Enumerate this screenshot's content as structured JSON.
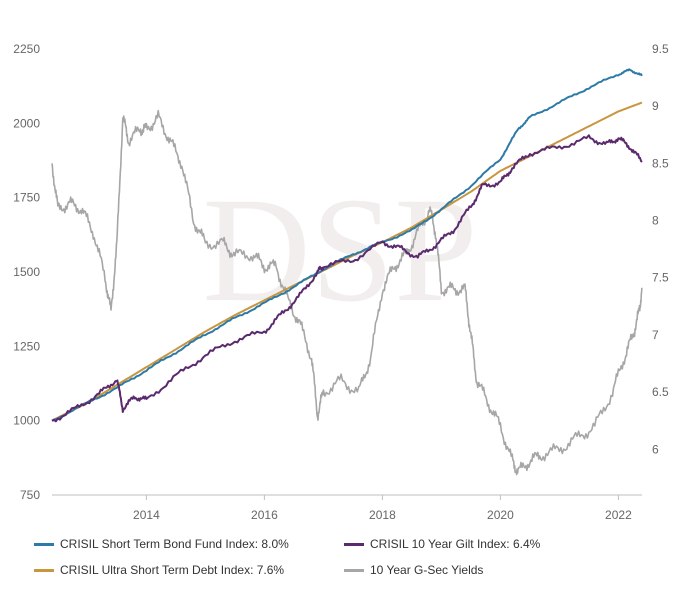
{
  "chart_data": {
    "type": "line",
    "title": "",
    "xlabel": "",
    "ylabel": "",
    "x_ticks": [
      "2014",
      "2016",
      "2018",
      "2020",
      "2022"
    ],
    "x_range": [
      2012.4,
      2022.4
    ],
    "y_left": {
      "ticks": [
        "750",
        "1000",
        "1250",
        "1500",
        "1750",
        "2000",
        "2250"
      ],
      "range": [
        750,
        2250
      ]
    },
    "y_right": {
      "ticks": [
        "6",
        "6.5",
        "7",
        "7.5",
        "8",
        "8.5",
        "9",
        "9.5"
      ],
      "range": [
        5.6,
        9.5
      ]
    },
    "watermark": "DSP",
    "series": [
      {
        "name": "CRISIL Short Term Bond Fund Index: 8.0%",
        "axis": "left",
        "color": "#2e7aa6",
        "x": [
          2012.4,
          2013.0,
          2013.5,
          2014.0,
          2014.5,
          2015.0,
          2015.5,
          2016.0,
          2016.5,
          2017.0,
          2017.5,
          2018.0,
          2018.5,
          2019.0,
          2019.5,
          2020.0,
          2020.3,
          2020.5,
          2021.0,
          2021.5,
          2022.0,
          2022.2,
          2022.4
        ],
        "values": [
          1000,
          1060,
          1110,
          1170,
          1230,
          1290,
          1345,
          1395,
          1450,
          1510,
          1560,
          1600,
          1640,
          1710,
          1790,
          1880,
          1980,
          2020,
          2070,
          2120,
          2165,
          2180,
          2160
        ]
      },
      {
        "name": "CRISIL Ultra Short Term Debt Index: 7.6%",
        "axis": "left",
        "color": "#c8963e",
        "x": [
          2012.4,
          2013.0,
          2013.5,
          2014.0,
          2014.5,
          2015.0,
          2015.5,
          2016.0,
          2016.5,
          2017.0,
          2017.5,
          2018.0,
          2018.5,
          2019.0,
          2019.5,
          2020.0,
          2020.5,
          2021.0,
          2021.5,
          2022.0,
          2022.4
        ],
        "values": [
          1000,
          1060,
          1120,
          1180,
          1240,
          1300,
          1355,
          1405,
          1455,
          1505,
          1555,
          1600,
          1650,
          1710,
          1770,
          1840,
          1890,
          1940,
          1990,
          2040,
          2070
        ]
      },
      {
        "name": "CRISIL 10 Year Gilt Index: 6.4%",
        "axis": "left",
        "color": "#5b2a6e",
        "x": [
          2012.4,
          2012.8,
          2013.2,
          2013.5,
          2013.6,
          2013.8,
          2014.0,
          2014.5,
          2015.0,
          2015.5,
          2016.0,
          2016.3,
          2016.6,
          2016.9,
          2017.0,
          2017.5,
          2018.0,
          2018.3,
          2018.6,
          2018.9,
          2019.2,
          2019.5,
          2019.7,
          2020.0,
          2020.2,
          2020.5,
          2021.0,
          2021.5,
          2021.8,
          2022.0,
          2022.2,
          2022.4
        ],
        "values": [
          1000,
          1040,
          1090,
          1140,
          1040,
          1080,
          1070,
          1150,
          1220,
          1270,
          1300,
          1360,
          1420,
          1500,
          1520,
          1540,
          1600,
          1580,
          1550,
          1590,
          1640,
          1720,
          1790,
          1800,
          1850,
          1900,
          1920,
          1950,
          1930,
          1950,
          1920,
          1870
        ]
      },
      {
        "name": "10 Year G-Sec Yields",
        "axis": "right",
        "color": "#a6a6a6",
        "x": [
          2012.4,
          2012.5,
          2012.7,
          2012.9,
          2013.1,
          2013.3,
          2013.4,
          2013.5,
          2013.6,
          2013.7,
          2013.9,
          2014.0,
          2014.2,
          2014.4,
          2014.6,
          2014.8,
          2015.0,
          2015.3,
          2015.5,
          2015.8,
          2016.0,
          2016.2,
          2016.4,
          2016.6,
          2016.8,
          2016.9,
          2017.0,
          2017.3,
          2017.6,
          2017.8,
          2018.0,
          2018.2,
          2018.4,
          2018.6,
          2018.8,
          2018.9,
          2019.0,
          2019.2,
          2019.4,
          2019.5,
          2019.6,
          2019.8,
          2020.0,
          2020.2,
          2020.3,
          2020.5,
          2020.7,
          2021.0,
          2021.3,
          2021.6,
          2021.9,
          2022.1,
          2022.25,
          2022.35,
          2022.4
        ],
        "values": [
          8.5,
          8.1,
          8.15,
          8.1,
          7.9,
          7.5,
          7.2,
          7.8,
          8.9,
          8.7,
          8.8,
          8.8,
          8.9,
          8.7,
          8.5,
          8.0,
          7.8,
          7.8,
          7.7,
          7.7,
          7.6,
          7.6,
          7.3,
          7.1,
          6.8,
          6.3,
          6.5,
          6.6,
          6.5,
          6.8,
          7.4,
          7.6,
          7.7,
          7.9,
          8.1,
          7.9,
          7.4,
          7.4,
          7.4,
          7.0,
          6.6,
          6.4,
          6.2,
          5.9,
          5.8,
          5.9,
          5.95,
          6.0,
          6.1,
          6.2,
          6.5,
          6.8,
          7.0,
          7.2,
          7.4
        ]
      }
    ],
    "legend": [
      "CRISIL Short Term Bond Fund Index: 8.0%",
      "CRISIL 10 Year Gilt Index: 6.4%",
      "CRISIL Ultra Short Term Debt Index: 7.6%",
      "10 Year G-Sec Yields"
    ],
    "colors": [
      "#2e7aa6",
      "#5b2a6e",
      "#c8963e",
      "#a6a6a6"
    ]
  }
}
